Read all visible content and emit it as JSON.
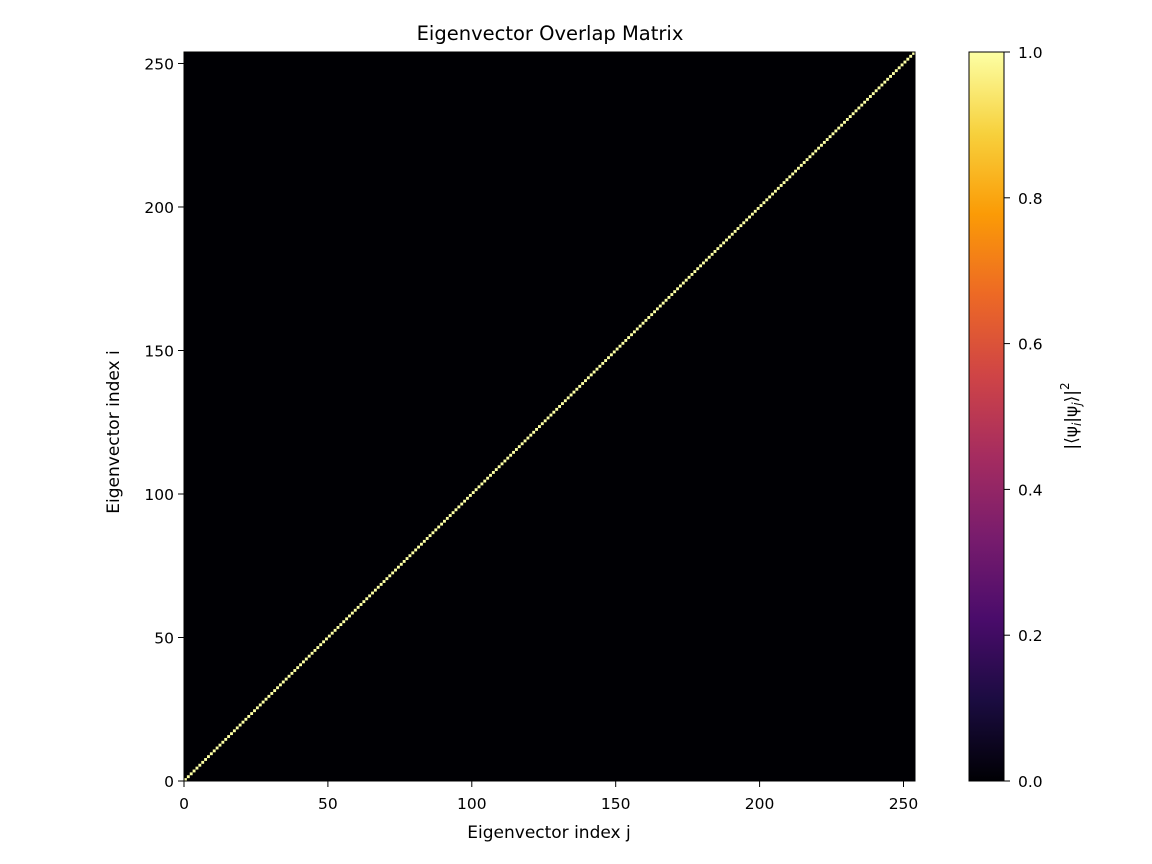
{
  "chart_data": {
    "type": "heatmap",
    "title": "Eigenvector Overlap Matrix",
    "xlabel": "Eigenvector index j",
    "ylabel": "Eigenvector index i",
    "matrix_size": 254,
    "xlim": [
      0,
      254
    ],
    "ylim": [
      0,
      254
    ],
    "x_ticks": [
      0,
      50,
      100,
      150,
      200,
      250
    ],
    "y_ticks": [
      0,
      50,
      100,
      150,
      200,
      250
    ],
    "x_tick_labels": [
      "0",
      "50",
      "100",
      "150",
      "200",
      "250"
    ],
    "y_tick_labels": [
      "0",
      "50",
      "100",
      "150",
      "200",
      "250"
    ],
    "values_description": "identity-like overlap: diagonal entries = 1.0, off-diagonal = 0.0",
    "diagonal_value": 1.0,
    "offdiagonal_value": 0.0,
    "colormap": "inferno",
    "colormap_stops": [
      "#000004",
      "#1b0c41",
      "#4a0c6b",
      "#781c6d",
      "#a52c60",
      "#cf4446",
      "#ed6925",
      "#fb9b06",
      "#f7d13d",
      "#fcffa4"
    ],
    "colorbar": {
      "label": "|⟨ψi|ψj⟩|²",
      "label_base": "|⟨ψ",
      "label_sub_i": "i",
      "label_mid": "|ψ",
      "label_sub_j": "j",
      "label_end": "⟩|",
      "label_sup": "2",
      "range": [
        0.0,
        1.0
      ],
      "ticks": [
        0.0,
        0.2,
        0.4,
        0.6,
        0.8,
        1.0
      ],
      "tick_labels": [
        "0.0",
        "0.2",
        "0.4",
        "0.6",
        "0.8",
        "1.0"
      ]
    }
  }
}
